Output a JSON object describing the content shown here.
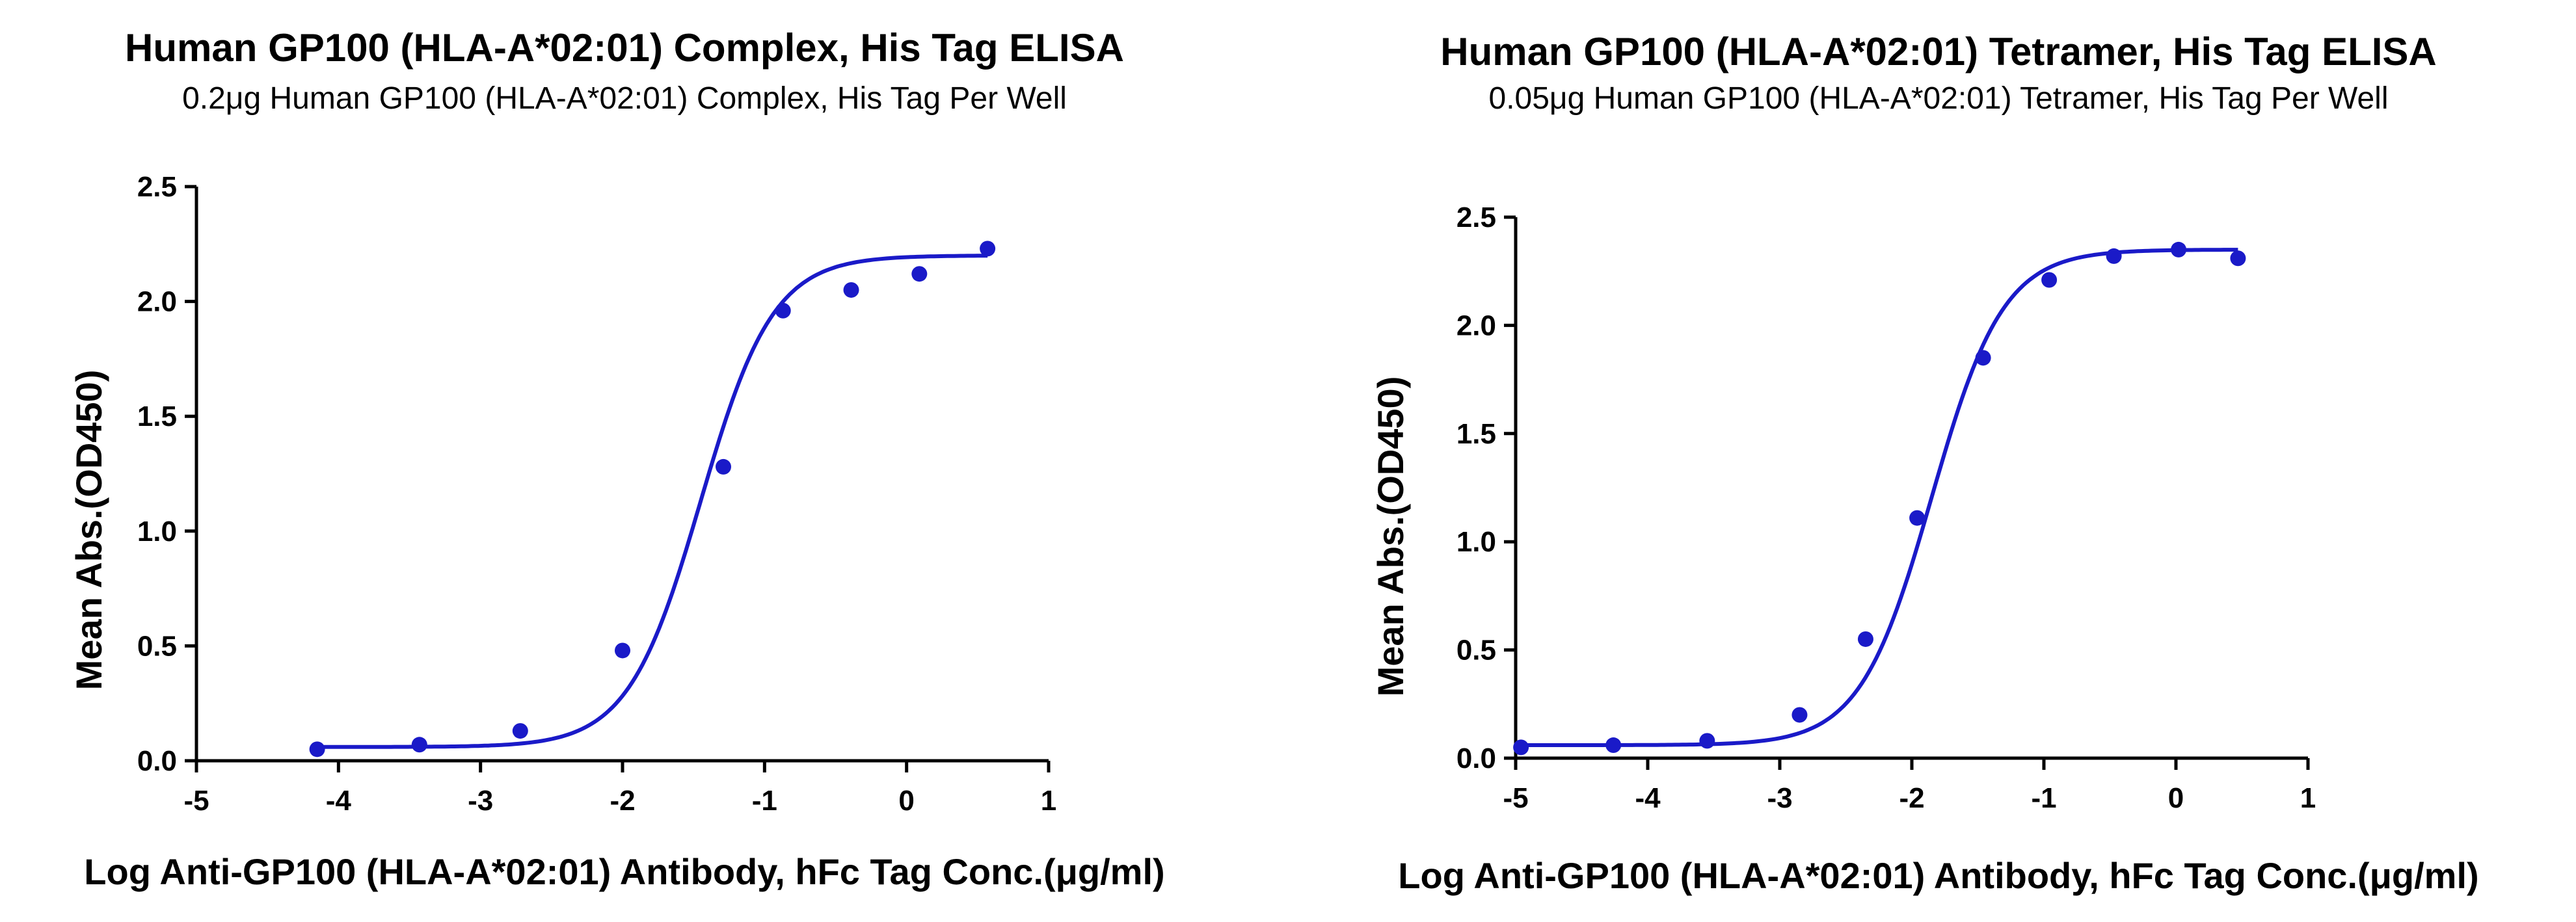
{
  "chart_data": [
    {
      "type": "scatter",
      "title": "Human GP100 (HLA-A*02:01) Complex, His Tag ELISA",
      "subtitle": "0.2μg Human GP100 (HLA-A*02:01) Complex, His Tag Per Well",
      "xlabel": "Log Anti-GP100 (HLA-A*02:01) Antibody, hFc Tag Conc.(μg/ml)",
      "ylabel": "Mean Abs.(OD450)",
      "xlim": [
        -5,
        1
      ],
      "ylim": [
        0,
        2.5
      ],
      "xticks": [
        -5,
        -4,
        -3,
        -2,
        -1,
        0,
        1
      ],
      "yticks": [
        0.0,
        0.5,
        1.0,
        1.5,
        2.0,
        2.5
      ],
      "xtick_labels": [
        "-5",
        "-4",
        "-3",
        "-2",
        "-1",
        "0",
        "1"
      ],
      "ytick_labels": [
        "0.0",
        "0.5",
        "1.0",
        "1.5",
        "2.0",
        "2.5"
      ],
      "series": [
        {
          "name": "data",
          "color": "#1a1ac8",
          "x": [
            -4.15,
            -3.43,
            -2.72,
            -2.0,
            -1.29,
            -0.87,
            -0.39,
            0.09,
            0.57
          ],
          "y": [
            0.05,
            0.07,
            0.13,
            0.48,
            1.28,
            1.96,
            2.05,
            2.12,
            2.23
          ]
        }
      ],
      "fit": {
        "model": "4PL",
        "bottom": 0.06,
        "top": 2.2,
        "logEC50": -1.45,
        "hill": 1.7,
        "x_range": [
          -4.15,
          0.57
        ]
      }
    },
    {
      "type": "scatter",
      "title": "Human GP100 (HLA-A*02:01) Tetramer, His Tag ELISA",
      "subtitle": "0.05μg Human GP100 (HLA-A*02:01) Tetramer, His Tag Per Well",
      "xlabel": "Log Anti-GP100 (HLA-A*02:01) Antibody, hFc Tag Conc.(μg/ml)",
      "ylabel": "Mean Abs.(OD450)",
      "xlim": [
        -5,
        1
      ],
      "ylim": [
        0,
        2.5
      ],
      "xticks": [
        -5,
        -4,
        -3,
        -2,
        -1,
        0,
        1
      ],
      "yticks": [
        0.0,
        0.5,
        1.0,
        1.5,
        2.0,
        2.5
      ],
      "xtick_labels": [
        "-5",
        "-4",
        "-3",
        "-2",
        "-1",
        "0",
        "1"
      ],
      "ytick_labels": [
        "0.0",
        "0.5",
        "1.0",
        "1.5",
        "2.0",
        "2.5"
      ],
      "series": [
        {
          "name": "data",
          "color": "#1a1ac8",
          "x": [
            -4.96,
            -4.26,
            -3.55,
            -2.85,
            -2.35,
            -1.96,
            -1.46,
            -0.96,
            -0.47,
            0.02,
            0.47
          ],
          "y": [
            0.05,
            0.06,
            0.08,
            0.2,
            0.55,
            1.11,
            1.85,
            2.21,
            2.32,
            2.35,
            2.31
          ]
        }
      ],
      "fit": {
        "model": "4PL",
        "bottom": 0.06,
        "top": 2.35,
        "logEC50": -1.85,
        "hill": 1.6,
        "x_range": [
          -4.96,
          0.47
        ]
      }
    }
  ]
}
